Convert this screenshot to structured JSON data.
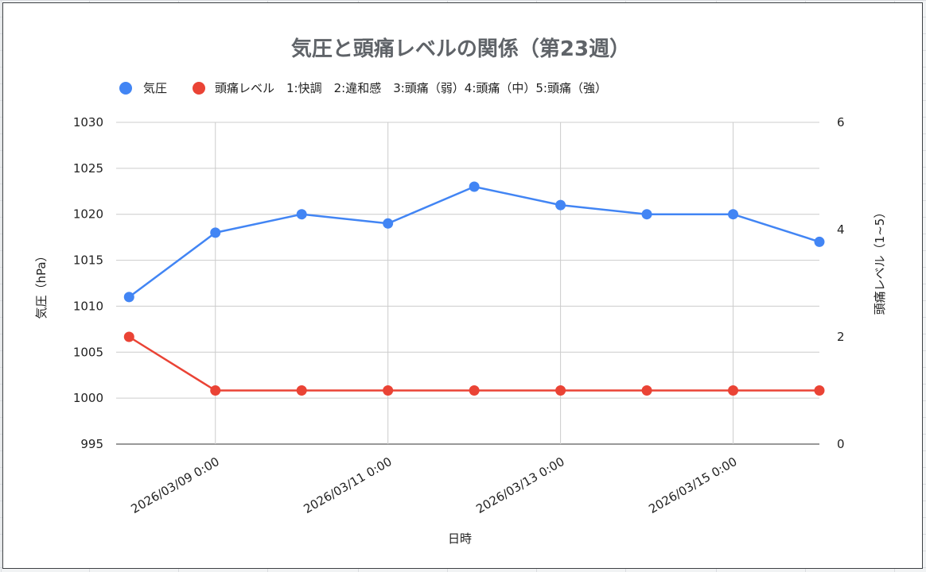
{
  "chart_data": {
    "type": "line",
    "title": "気圧と頭痛レベルの関係（第23週）",
    "xlabel": "日時",
    "ylabel": "気圧（hPa）",
    "y2label": "頭痛レベル（1~5）",
    "legend_position": "top-left",
    "grid": true,
    "x": [
      "2026/03/08 00:00",
      "2026/03/09 00:00",
      "2026/03/10 00:00",
      "2026/03/11 00:00",
      "2026/03/12 00:00",
      "2026/03/13 00:00",
      "2026/03/14 00:00",
      "2026/03/15 00:00",
      "2026/03/16 00:00"
    ],
    "x_ticks": [
      "2026/03/09 0:00",
      "2026/03/11 0:00",
      "2026/03/13 0:00",
      "2026/03/15 0:00"
    ],
    "ylim": [
      995,
      1030
    ],
    "y_ticks": [
      "995",
      "1000",
      "1005",
      "1010",
      "1015",
      "1020",
      "1025",
      "1030"
    ],
    "y2lim": [
      0,
      6
    ],
    "y2_ticks": [
      "0",
      "2",
      "4",
      "6"
    ],
    "series": [
      {
        "name": "気圧",
        "axis": "left",
        "color": "#4285f4",
        "values": [
          1011,
          1018,
          1020,
          1019,
          1023,
          1021,
          1020,
          1020,
          1017
        ]
      },
      {
        "name": "頭痛レベル　1:快調　2:違和感　3:頭痛（弱）4:頭痛（中）5:頭痛（強）",
        "axis": "right",
        "color": "#ea4335",
        "values": [
          2,
          1,
          1,
          1,
          1,
          1,
          1,
          1,
          1
        ]
      }
    ]
  }
}
